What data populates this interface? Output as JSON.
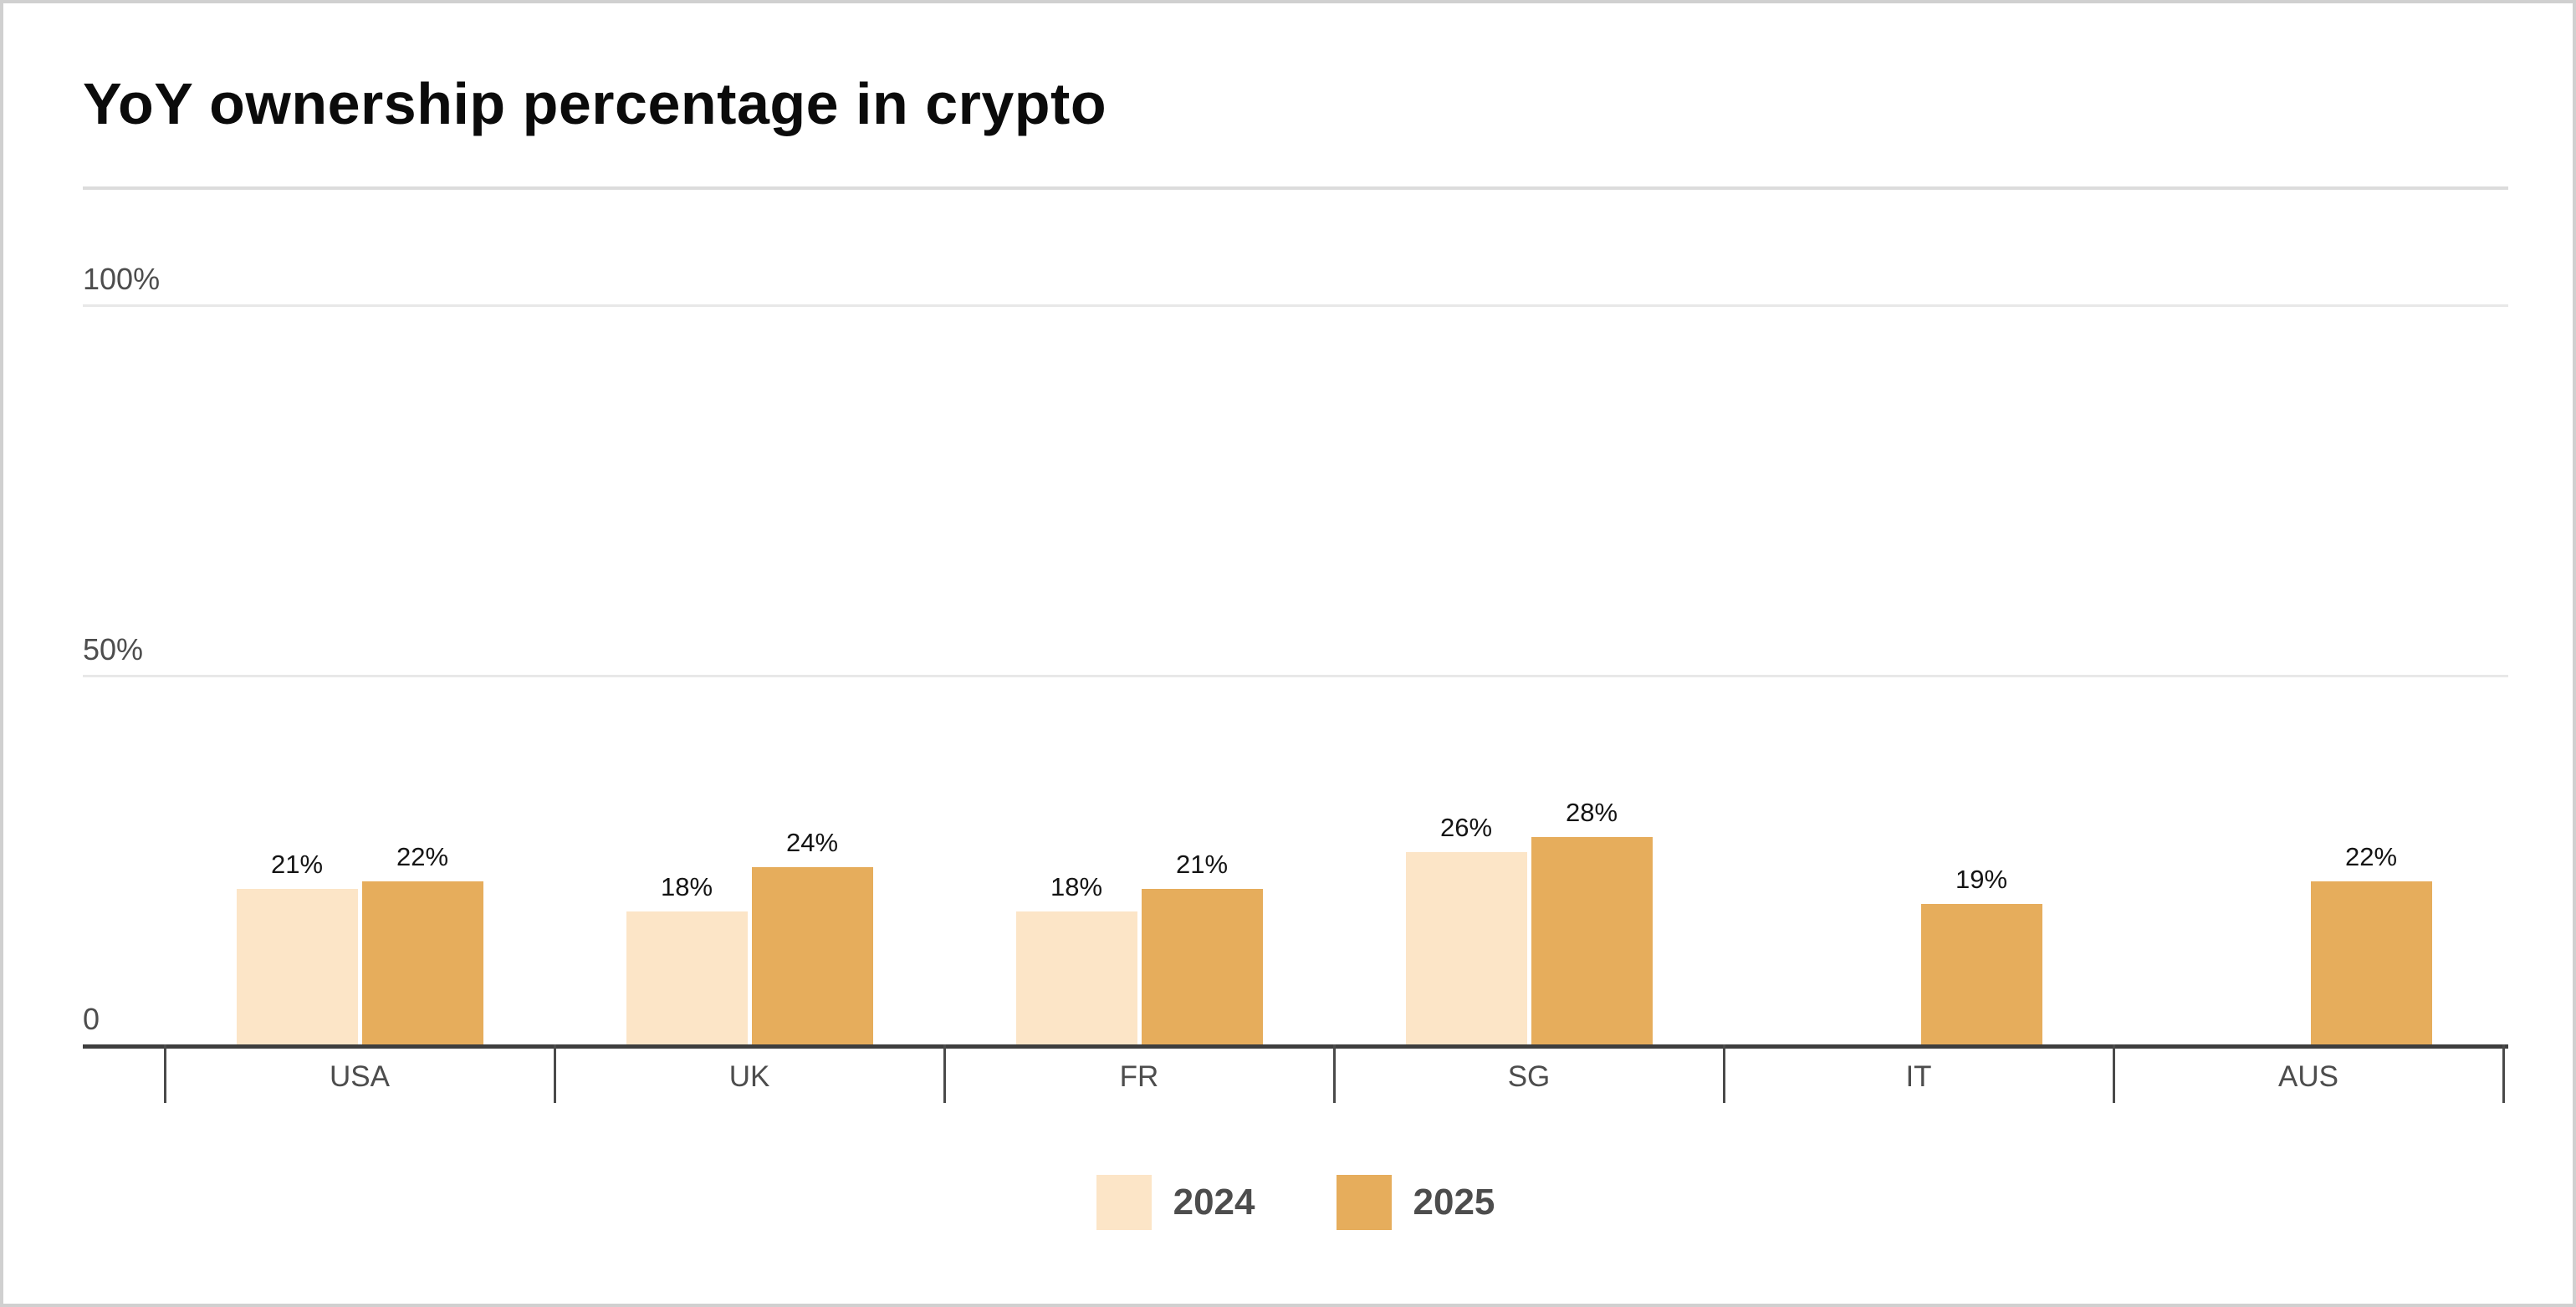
{
  "page": {
    "title": "YoY ownership percentage in crypto"
  },
  "colors": {
    "title_text": "#0b0b0b",
    "axis_text": "#4d4d4d",
    "value_text": "#141414",
    "legend_text": "#4d4d4d",
    "axis_line": "#3e3e3e",
    "tick": "#4a4a4a",
    "grid": "#e8e8e8",
    "divider": "#dcdcdc",
    "border_color": "#d0d0d0",
    "series_2024": "#FCE5C7",
    "series_2025": "#E6AD5C"
  },
  "chart_data": {
    "type": "bar",
    "title": "YoY ownership percentage in crypto",
    "categories": [
      "USA",
      "UK",
      "FR",
      "SG",
      "IT",
      "AUS"
    ],
    "series": [
      {
        "name": "2024",
        "color": "#FCE5C7",
        "values": [
          21,
          18,
          18,
          26,
          null,
          null
        ]
      },
      {
        "name": "2025",
        "color": "#E6AD5C",
        "values": [
          22,
          24,
          21,
          28,
          19,
          22
        ]
      }
    ],
    "value_suffix": "%",
    "data_labels": true,
    "ylim": [
      0,
      100
    ],
    "y_axis": {
      "ticks": [
        {
          "label": "0",
          "value": 0
        },
        {
          "label": "50%",
          "value": 50
        },
        {
          "label": "100%",
          "value": 100
        }
      ]
    },
    "grid": true,
    "legend_position": "bottom"
  }
}
